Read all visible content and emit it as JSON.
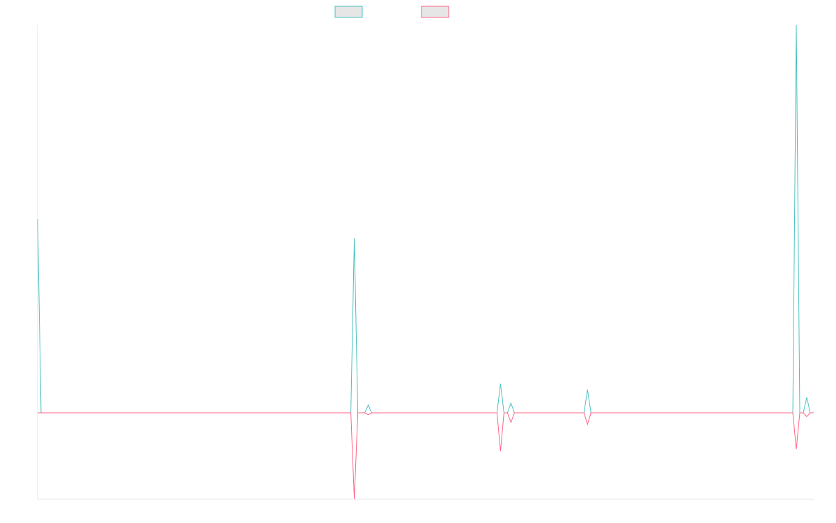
{
  "chart_data": {
    "type": "line",
    "title": "",
    "xlabel": "",
    "ylabel": "",
    "grid": false,
    "legend_position": "top-center",
    "x_count": 224,
    "ylim": [
      -0.45,
      2.0
    ],
    "series": [
      {
        "color": "#4bc0c0",
        "legend_fill": "#e6e6e6",
        "points": [
          [
            0,
            1.0
          ],
          [
            1,
            0.0
          ],
          [
            90,
            0.0
          ],
          [
            91,
            0.9
          ],
          [
            92,
            0.0
          ],
          [
            94,
            0.0
          ],
          [
            95,
            0.04
          ],
          [
            96,
            0.0
          ],
          [
            132,
            0.0
          ],
          [
            133,
            0.15
          ],
          [
            134,
            0.0
          ],
          [
            135,
            0.0
          ],
          [
            136,
            0.05
          ],
          [
            137,
            0.0
          ],
          [
            157,
            0.0
          ],
          [
            158,
            0.12
          ],
          [
            159,
            0.0
          ],
          [
            217,
            0.0
          ],
          [
            218,
            2.0
          ],
          [
            219,
            0.0
          ],
          [
            220,
            0.0
          ],
          [
            221,
            0.08
          ],
          [
            222,
            0.0
          ],
          [
            223,
            0.0
          ]
        ]
      },
      {
        "color": "#ff6384",
        "legend_fill": "#e6e6e6",
        "points": [
          [
            0,
            0.0
          ],
          [
            90,
            0.0
          ],
          [
            91,
            -0.45
          ],
          [
            92,
            0.0
          ],
          [
            94,
            0.0
          ],
          [
            95,
            -0.01
          ],
          [
            96,
            0.0
          ],
          [
            132,
            0.0
          ],
          [
            133,
            -0.2
          ],
          [
            134,
            0.0
          ],
          [
            135,
            0.0
          ],
          [
            136,
            -0.05
          ],
          [
            137,
            0.0
          ],
          [
            157,
            0.0
          ],
          [
            158,
            -0.06
          ],
          [
            159,
            0.0
          ],
          [
            217,
            0.0
          ],
          [
            218,
            -0.19
          ],
          [
            219,
            0.0
          ],
          [
            220,
            0.0
          ],
          [
            221,
            -0.02
          ],
          [
            222,
            0.0
          ],
          [
            223,
            0.0
          ]
        ]
      }
    ]
  }
}
